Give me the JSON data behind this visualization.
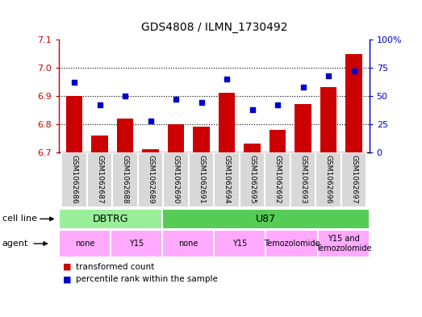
{
  "title": "GDS4808 / ILMN_1730492",
  "samples": [
    "GSM1062686",
    "GSM1062687",
    "GSM1062688",
    "GSM1062689",
    "GSM1062690",
    "GSM1062691",
    "GSM1062694",
    "GSM1062695",
    "GSM1062692",
    "GSM1062693",
    "GSM1062696",
    "GSM1062697"
  ],
  "bar_values": [
    6.9,
    6.76,
    6.82,
    6.71,
    6.8,
    6.79,
    6.91,
    6.73,
    6.78,
    6.87,
    6.93,
    7.05
  ],
  "dot_values": [
    62,
    42,
    50,
    28,
    47,
    44,
    65,
    38,
    42,
    58,
    68,
    72
  ],
  "ylim": [
    6.7,
    7.1
  ],
  "yticks": [
    6.7,
    6.8,
    6.9,
    7.0,
    7.1
  ],
  "right_yticks": [
    0,
    25,
    50,
    75,
    100
  ],
  "right_ylim": [
    0,
    100
  ],
  "bar_color": "#cc0000",
  "dot_color": "#0000cc",
  "sample_bg_color": "#d8d8d8",
  "cell_line_groups": [
    {
      "label": "DBTRG",
      "start": 0,
      "end": 4,
      "color": "#99ee99"
    },
    {
      "label": "U87",
      "start": 4,
      "end": 12,
      "color": "#55cc55"
    }
  ],
  "agent_groups": [
    {
      "label": "none",
      "start": 0,
      "end": 2,
      "color": "#ffaaff"
    },
    {
      "label": "Y15",
      "start": 2,
      "end": 4,
      "color": "#ffaaff"
    },
    {
      "label": "none",
      "start": 4,
      "end": 6,
      "color": "#ffaaff"
    },
    {
      "label": "Y15",
      "start": 6,
      "end": 8,
      "color": "#ffaaff"
    },
    {
      "label": "Temozolomide",
      "start": 8,
      "end": 10,
      "color": "#ffaaff"
    },
    {
      "label": "Y15 and\nTemozolomide",
      "start": 10,
      "end": 12,
      "color": "#ffaaff"
    }
  ],
  "legend_items": [
    {
      "label": "transformed count",
      "color": "#cc0000"
    },
    {
      "label": "percentile rank within the sample",
      "color": "#0000cc"
    }
  ]
}
